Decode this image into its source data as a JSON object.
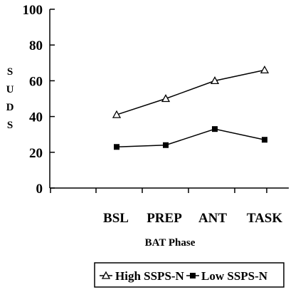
{
  "chart_data": {
    "type": "line",
    "categories": [
      "BSL",
      "PREP",
      "ANT",
      "TASK"
    ],
    "xlabel": "BAT Phase",
    "ylabel": "SUDS",
    "ylim": [
      0,
      100
    ],
    "yticks": [
      0,
      20,
      40,
      60,
      80,
      100
    ],
    "grid": false,
    "legend_position": "bottom",
    "series": [
      {
        "name": "High SSPS-N",
        "values": [
          41,
          50,
          60,
          66
        ],
        "marker": "open-triangle",
        "color": "#000000"
      },
      {
        "name": "Low SSPS-N",
        "values": [
          23,
          24,
          33,
          27
        ],
        "marker": "filled-square",
        "color": "#000000"
      }
    ]
  }
}
